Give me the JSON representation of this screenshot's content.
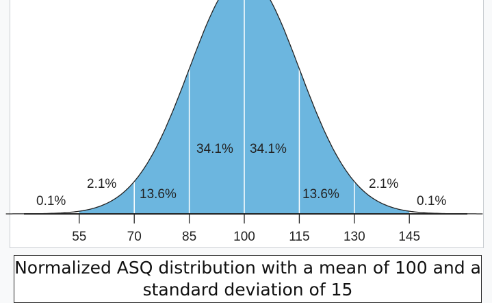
{
  "chart_data": {
    "type": "area",
    "title": "Normalized ASQ distribution with a mean of 100 and a standard deviation of 15",
    "mean": 100,
    "sd": 15,
    "x_ticks": [
      "55",
      "70",
      "85",
      "100",
      "115",
      "130",
      "145"
    ],
    "x_tick_values": [
      55,
      70,
      85,
      100,
      115,
      130,
      145
    ],
    "xlim": [
      35,
      165
    ],
    "region_labels": [
      "0.1%",
      "2.1%",
      "13.6%",
      "34.1%",
      "34.1%",
      "13.6%",
      "2.1%",
      "0.1%"
    ],
    "fill_color": "#6cb6df",
    "line_color": "#222222"
  },
  "caption": "Normalized ASQ distribution with a mean of 100 and a standard deviation of 15"
}
